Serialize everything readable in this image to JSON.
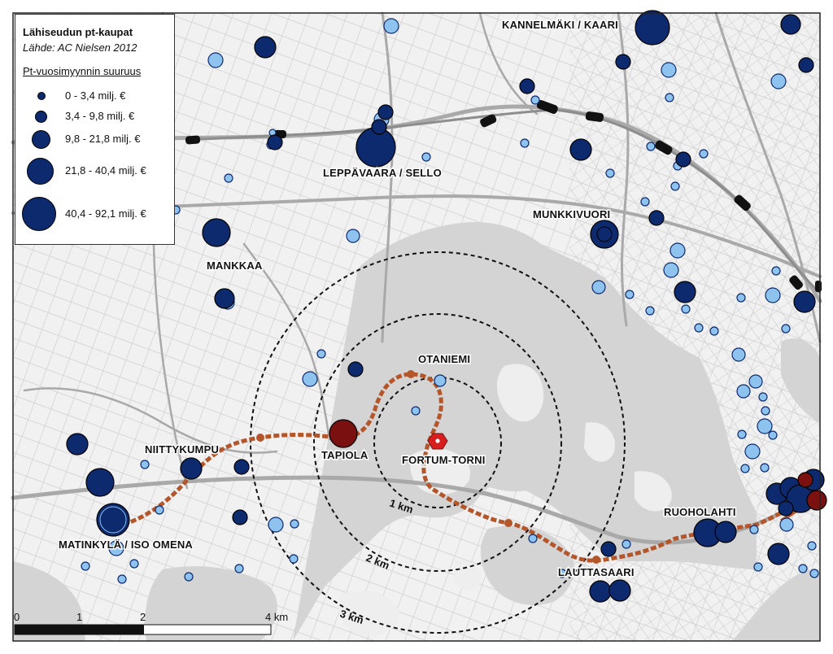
{
  "legend": {
    "title": "Lähiseudun pt-kaupat",
    "source": "Lähde: AC Nielsen 2012",
    "heading": "Pt-vuosimyynnin suuruus",
    "classes": [
      "0 - 3,4 milj. €",
      "3,4 - 9,8 milj. €",
      "9,8 - 21,8 milj. €",
      "21,8 - 40,4 milj. €",
      "40,4 - 92,1 milj. €"
    ]
  },
  "places": {
    "kannelmaki": "KANNELMÄKI / KAARI",
    "leppavaara": "LEPPÄVAARA / SELLO",
    "munkkivuori": "MUNKKIVUORI",
    "mankkaa": "MANKKAA",
    "otaniemi": "OTANIEMI",
    "niittykumpu": "NIITTYKUMPU",
    "tapiola": "TAPIOLA",
    "fortum": "FORTUM-TORNI",
    "ruoholahti": "RUOHOLAHTI",
    "matinkyla": "MATINKYLÄ / ISO OMENA",
    "lauttasaari": "LAUTTASAARI"
  },
  "rings": {
    "r1": "1 km",
    "r2": "2 km",
    "r3": "3 km"
  },
  "scalebar": {
    "t0": "0",
    "t1": "1",
    "t2": "2",
    "t4": "4 km"
  },
  "colors": {
    "dark_store": "#0d2a6e",
    "light_store": "#8fc3ef",
    "highlight_store": "#7a1010",
    "metro_line": "#b5562a",
    "fortum_marker": "#d81f1f",
    "water": "#d4d4d4",
    "land": "#f1f1f1"
  },
  "stores": [
    {
      "id": "kannelmaki-large",
      "size": 5,
      "color": "dark"
    },
    {
      "id": "sello",
      "size": 5,
      "color": "dark"
    },
    {
      "id": "iso-omena",
      "size": 5,
      "color": "dark"
    },
    {
      "id": "tapiola",
      "size": 4,
      "color": "highlight"
    },
    {
      "id": "munkkivuori",
      "size": 4,
      "color": "dark"
    },
    {
      "id": "ruoholahti",
      "size": 4,
      "color": "dark"
    }
  ]
}
